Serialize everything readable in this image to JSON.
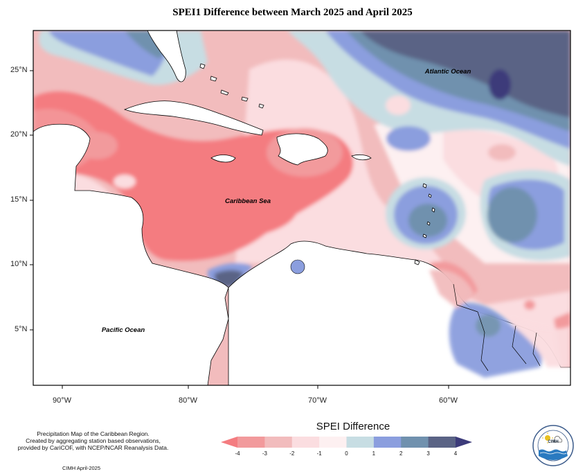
{
  "title": "SPEI1 Difference between March 2025 and April 2025",
  "map": {
    "lon_labels": [
      "90°W",
      "80°W",
      "70°W",
      "60°W"
    ],
    "lat_labels": [
      "25°N",
      "20°N",
      "15°N",
      "10°N",
      "5°N"
    ],
    "ocean_labels": {
      "atlantic": "Atlantic Ocean",
      "caribbean": "Caribbean Sea",
      "pacific": "Pacific Ocean"
    }
  },
  "legend": {
    "title": "SPEI Difference",
    "ticks": [
      "-4",
      "-3",
      "-2",
      "-1",
      "0",
      "1",
      "2",
      "3",
      "4"
    ],
    "colors": [
      "#f47c80",
      "#f29a9c",
      "#f2bcbd",
      "#fbdde0",
      "#fdf0f1",
      "#c7dde3",
      "#8b9ede",
      "#7091ae",
      "#5a6385",
      "#3c3b7a"
    ]
  },
  "caption": {
    "lines": [
      "Precipitation Map of the Caribbean Region.",
      "Created by aggregating station based observations,",
      "provided by CariCOF, with NCEP/NCAR Reanalysis Data."
    ],
    "credit": "CIMH April-2025"
  },
  "logo": {
    "text": "CIMH"
  }
}
